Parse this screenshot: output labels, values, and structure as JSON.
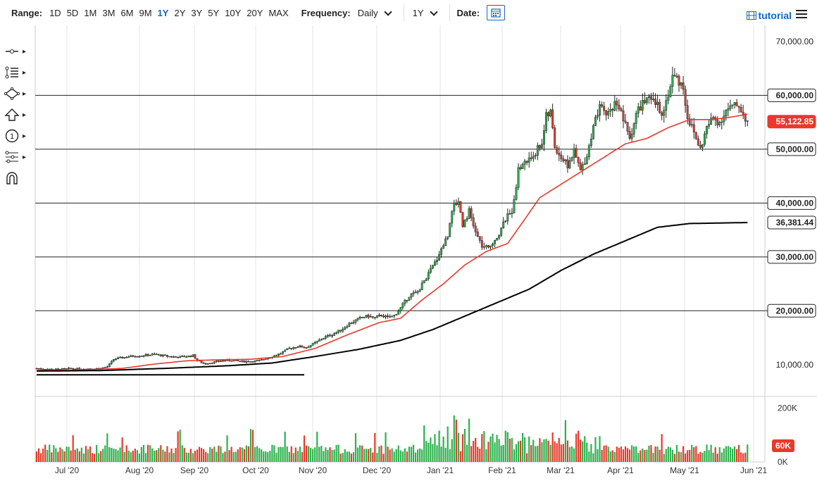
{
  "toolbar": {
    "range_label": "Range:",
    "ranges": [
      "1D",
      "5D",
      "1M",
      "3M",
      "6M",
      "9M",
      "1Y",
      "2Y",
      "3Y",
      "5Y",
      "10Y",
      "20Y",
      "MAX"
    ],
    "active_range": "1Y",
    "frequency_label": "Frequency:",
    "frequency_value": "Daily",
    "period_value": "1Y",
    "date_label": "Date:",
    "tutorial_label": "tutorial"
  },
  "left_tools": [
    "crosshair-tool",
    "text-tool",
    "shape-tool",
    "arrow-tool",
    "annotation-tool",
    "fib-tool",
    "magnet-tool"
  ],
  "chart_data": {
    "type": "candlestick",
    "price_ticks": [
      {
        "value": 70000,
        "label": "70,000.00",
        "style": "plain"
      },
      {
        "value": 60000,
        "label": "60,000.00",
        "style": "box"
      },
      {
        "value": 50000,
        "label": "50,000.00",
        "style": "box"
      },
      {
        "value": 40000,
        "label": "40,000.00",
        "style": "box"
      },
      {
        "value": 30000,
        "label": "30,000.00",
        "style": "box"
      },
      {
        "value": 20000,
        "label": "20,000.00",
        "style": "box"
      },
      {
        "value": 10000,
        "label": "10,000.00",
        "style": "plain"
      }
    ],
    "horizontal_levels": [
      60000,
      50000,
      40000,
      30000,
      20000
    ],
    "last_price": {
      "value": 55122.85,
      "label": "55,122.85",
      "color": "#e8392a"
    },
    "sma200_last": {
      "value": 36381.44,
      "label": "36,381.44",
      "color": "#000000"
    },
    "x_axis": [
      "Jul '20",
      "Aug '20",
      "Sep '20",
      "Oct '20",
      "Nov '20",
      "Dec '20",
      "Jan '21",
      "Feb '21",
      "Mar '21",
      "Apr '21",
      "May '21",
      "Jun '21"
    ],
    "ylim": [
      5000,
      73000
    ],
    "closes": [
      [
        0,
        9300
      ],
      [
        5,
        9150
      ],
      [
        10,
        9100
      ],
      [
        15,
        9250
      ],
      [
        20,
        9200
      ],
      [
        25,
        9250
      ],
      [
        30,
        9300
      ],
      [
        33,
        9600
      ],
      [
        36,
        11000
      ],
      [
        40,
        11300
      ],
      [
        45,
        11600
      ],
      [
        50,
        11700
      ],
      [
        55,
        11900
      ],
      [
        60,
        11600
      ],
      [
        65,
        11400
      ],
      [
        70,
        11500
      ],
      [
        73,
        11700
      ],
      [
        75,
        10800
      ],
      [
        78,
        10200
      ],
      [
        82,
        10400
      ],
      [
        86,
        10700
      ],
      [
        90,
        10800
      ],
      [
        95,
        10600
      ],
      [
        100,
        10600
      ],
      [
        104,
        10700
      ],
      [
        108,
        11300
      ],
      [
        110,
        11500
      ],
      [
        114,
        12100
      ],
      [
        118,
        13000
      ],
      [
        122,
        13400
      ],
      [
        126,
        13200
      ],
      [
        130,
        14000
      ],
      [
        134,
        15000
      ],
      [
        138,
        15600
      ],
      [
        142,
        16400
      ],
      [
        146,
        17600
      ],
      [
        150,
        18400
      ],
      [
        153,
        18900
      ],
      [
        155,
        19000
      ],
      [
        158,
        18600
      ],
      [
        161,
        19200
      ],
      [
        164,
        18700
      ],
      [
        167,
        19100
      ],
      [
        170,
        20500
      ],
      [
        174,
        22800
      ],
      [
        178,
        23500
      ],
      [
        182,
        26200
      ],
      [
        186,
        28900
      ],
      [
        189,
        31500
      ],
      [
        192,
        34000
      ],
      [
        194,
        39000
      ],
      [
        197,
        40500
      ],
      [
        199,
        36000
      ],
      [
        202,
        38500
      ],
      [
        205,
        34500
      ],
      [
        208,
        32000
      ],
      [
        211,
        31500
      ],
      [
        213,
        32800
      ],
      [
        216,
        34300
      ],
      [
        219,
        37000
      ],
      [
        222,
        38600
      ],
      [
        225,
        46000
      ],
      [
        227,
        47300
      ],
      [
        230,
        48000
      ],
      [
        233,
        49500
      ],
      [
        236,
        51300
      ],
      [
        238,
        56000
      ],
      [
        240,
        56800
      ],
      [
        242,
        50500
      ],
      [
        245,
        48500
      ],
      [
        248,
        47000
      ],
      [
        251,
        49500
      ],
      [
        254,
        46000
      ],
      [
        257,
        49000
      ],
      [
        260,
        54000
      ],
      [
        263,
        57500
      ],
      [
        266,
        56500
      ],
      [
        269,
        57800
      ],
      [
        271,
        59000
      ],
      [
        274,
        55500
      ],
      [
        277,
        52000
      ],
      [
        280,
        56500
      ],
      [
        283,
        58700
      ],
      [
        286,
        59000
      ],
      [
        289,
        58500
      ],
      [
        292,
        57000
      ],
      [
        294,
        58800
      ],
      [
        297,
        63500
      ],
      [
        299,
        63200
      ],
      [
        302,
        61500
      ],
      [
        304,
        56000
      ],
      [
        307,
        53000
      ],
      [
        310,
        50000
      ],
      [
        313,
        54000
      ],
      [
        316,
        55800
      ],
      [
        319,
        55000
      ],
      [
        322,
        57200
      ],
      [
        325,
        57800
      ],
      [
        328,
        58200
      ],
      [
        330,
        56500
      ],
      [
        332,
        55122
      ]
    ],
    "sma50": [
      [
        0,
        8900
      ],
      [
        20,
        9000
      ],
      [
        40,
        9300
      ],
      [
        55,
        10100
      ],
      [
        70,
        10700
      ],
      [
        85,
        10900
      ],
      [
        100,
        11000
      ],
      [
        115,
        11500
      ],
      [
        130,
        13000
      ],
      [
        145,
        15500
      ],
      [
        160,
        17800
      ],
      [
        170,
        18600
      ],
      [
        180,
        22000
      ],
      [
        190,
        25000
      ],
      [
        200,
        28500
      ],
      [
        210,
        31000
      ],
      [
        220,
        32500
      ],
      [
        228,
        37000
      ],
      [
        235,
        41000
      ],
      [
        245,
        43500
      ],
      [
        255,
        46000
      ],
      [
        265,
        48500
      ],
      [
        275,
        51000
      ],
      [
        285,
        52000
      ],
      [
        295,
        54000
      ],
      [
        305,
        55500
      ],
      [
        315,
        55500
      ],
      [
        325,
        56000
      ],
      [
        332,
        56500
      ]
    ],
    "sma200": [
      [
        0,
        8800
      ],
      [
        30,
        8900
      ],
      [
        60,
        9300
      ],
      [
        90,
        9800
      ],
      [
        110,
        10300
      ],
      [
        130,
        11500
      ],
      [
        150,
        12800
      ],
      [
        170,
        14500
      ],
      [
        185,
        16500
      ],
      [
        200,
        19000
      ],
      [
        215,
        21500
      ],
      [
        230,
        24000
      ],
      [
        245,
        27500
      ],
      [
        260,
        30500
      ],
      [
        275,
        33000
      ],
      [
        290,
        35500
      ],
      [
        305,
        36200
      ],
      [
        320,
        36300
      ],
      [
        332,
        36381
      ]
    ],
    "support_line": {
      "x0": 0,
      "y0": 8100,
      "x1": 125,
      "y1": 8100
    },
    "volume": {
      "ticks": [
        {
          "value": 200000,
          "label": "200K"
        },
        {
          "value": 0,
          "label": "0K"
        }
      ],
      "last": {
        "value": 60000,
        "label": "60K",
        "color": "#e8392a"
      },
      "ylim": [
        0,
        230000
      ]
    },
    "colors": {
      "up": "#2bb24c",
      "down": "#e8392a",
      "sma50": "#e8392a",
      "sma200": "#000000",
      "grid": "#e6e6e6"
    }
  }
}
